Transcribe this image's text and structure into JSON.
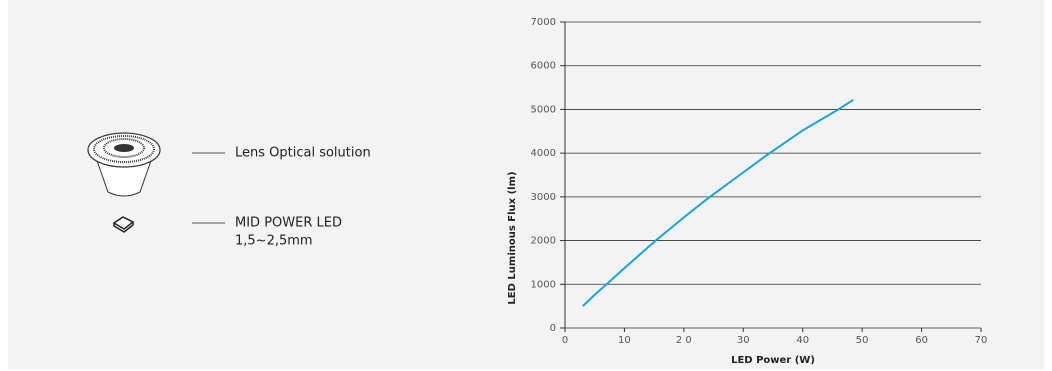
{
  "callouts": {
    "lens": "Lens Optical solution",
    "led": [
      "MID POWER LED",
      "1,5~2,5mm"
    ]
  },
  "chart_data": {
    "type": "line",
    "x": [
      3,
      5,
      7,
      10,
      15,
      20,
      24,
      30,
      34,
      40,
      46,
      48.5
    ],
    "values": [
      500,
      760,
      1000,
      1370,
      1970,
      2530,
      2960,
      3560,
      3960,
      4520,
      5000,
      5220
    ],
    "color": "#1aa3dc",
    "xlabel": "LED Power (W)",
    "ylabel": "LED Luminous Flux (lm)",
    "xlim": [
      0,
      70
    ],
    "xticks": [
      0,
      10,
      {
        "value": 20,
        "label": "2 0"
      },
      30,
      40,
      50,
      60,
      70
    ],
    "ylim": [
      0,
      7000
    ],
    "yticks": [
      0,
      1000,
      2000,
      3000,
      4000,
      5000,
      6000,
      7000
    ],
    "grid": true
  }
}
